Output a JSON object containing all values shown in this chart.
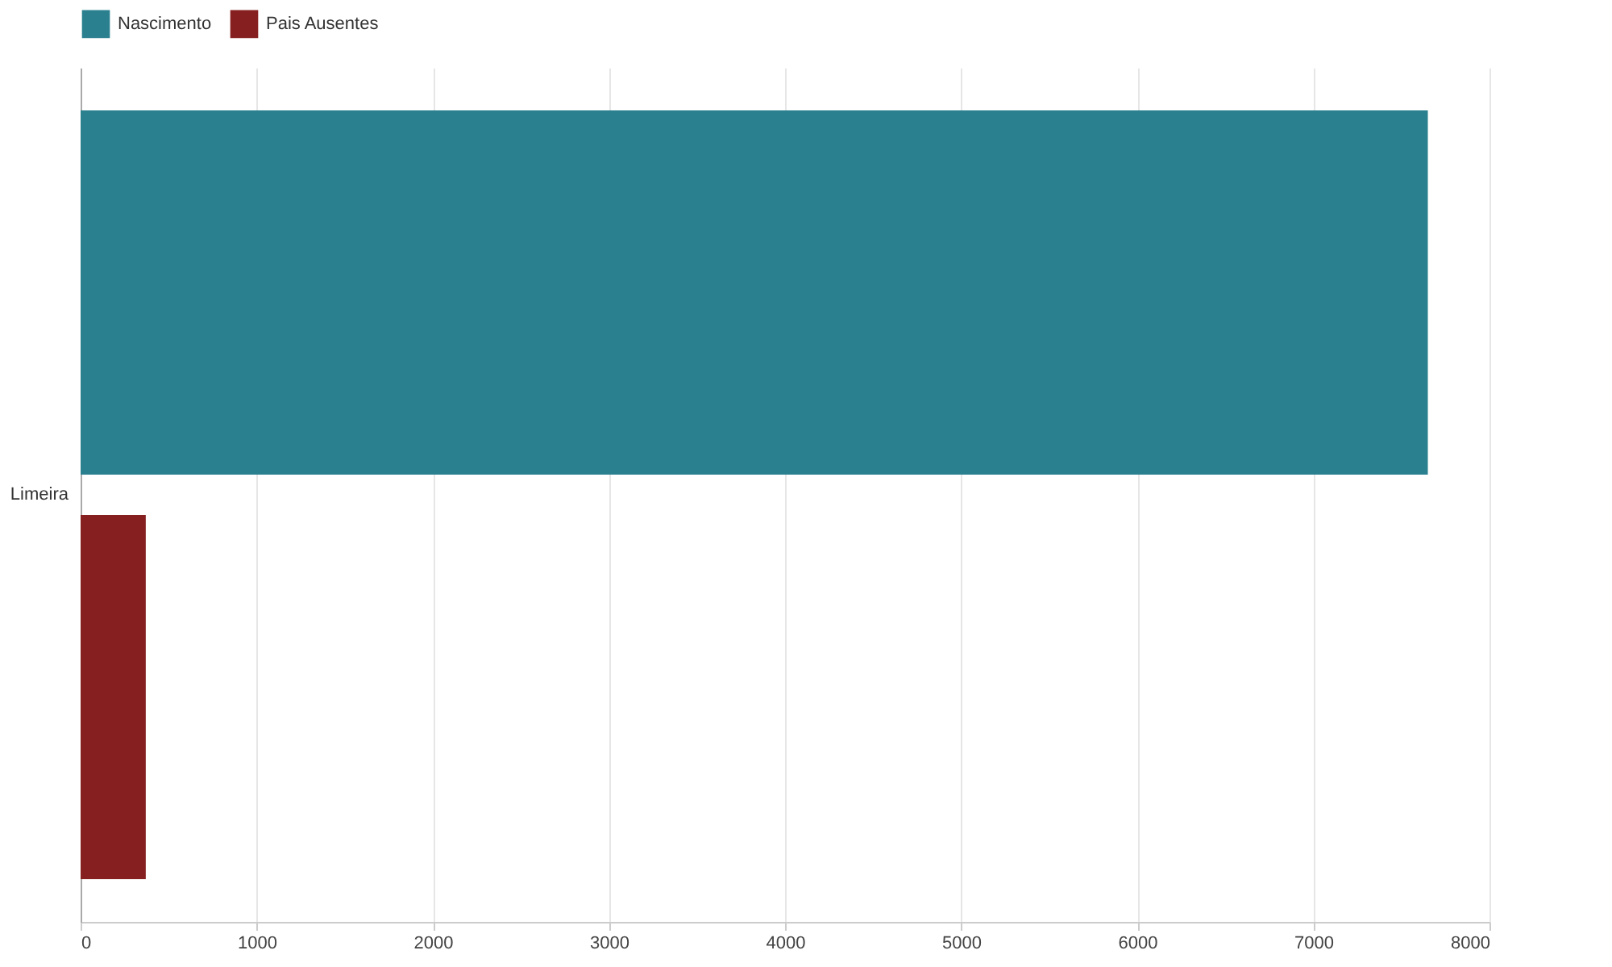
{
  "chart_data": {
    "type": "bar",
    "orientation": "horizontal",
    "categories": [
      "Limeira"
    ],
    "series": [
      {
        "name": "Nascimento",
        "color": "#2b8090",
        "values": [
          7650
        ]
      },
      {
        "name": "Pais Ausentes",
        "color": "#861f20",
        "values": [
          370
        ]
      }
    ],
    "xlim": [
      0,
      8000
    ],
    "xticks": [
      0,
      1000,
      2000,
      3000,
      4000,
      5000,
      6000,
      7000,
      8000
    ],
    "grid": "x",
    "legend": "top"
  }
}
